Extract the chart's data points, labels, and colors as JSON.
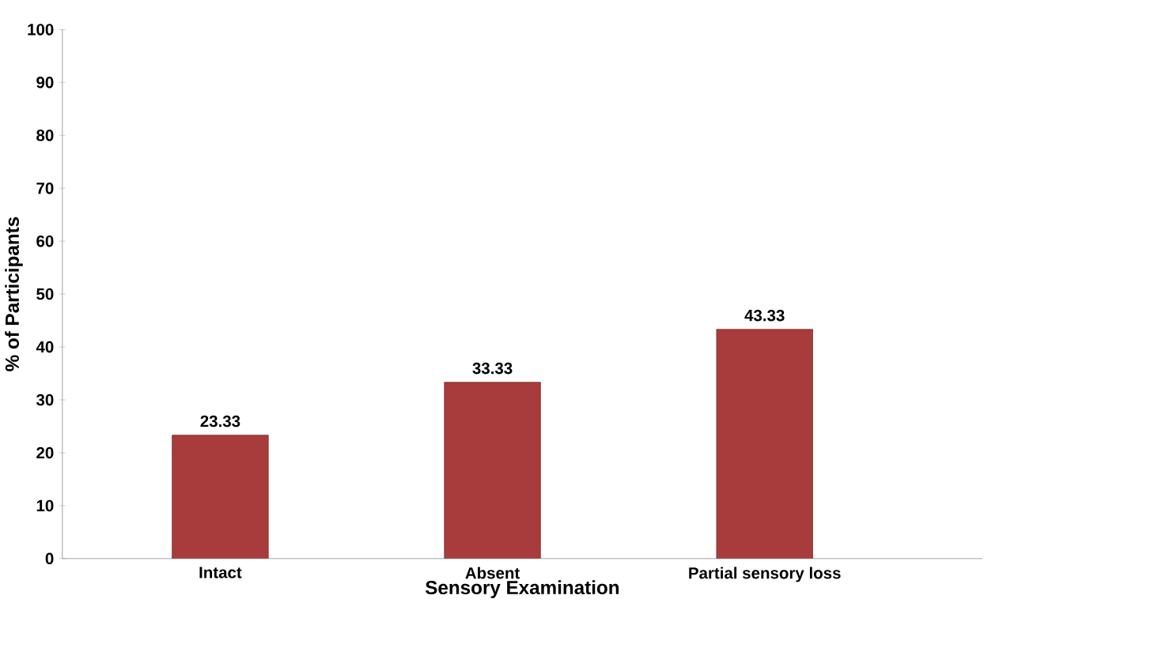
{
  "chart_data": {
    "type": "bar",
    "xlabel": "Sensory Examination",
    "ylabel": "% of Participants",
    "categories": [
      "Intact",
      "Absent",
      "Partial sensory loss"
    ],
    "values": [
      23.33,
      33.33,
      43.33
    ],
    "color": "#a83c3c",
    "ylim": [
      0,
      100
    ],
    "yticks": [
      0,
      10,
      20,
      30,
      40,
      50,
      60,
      70,
      80,
      90,
      100
    ],
    "grid": false,
    "data_labels": true
  }
}
